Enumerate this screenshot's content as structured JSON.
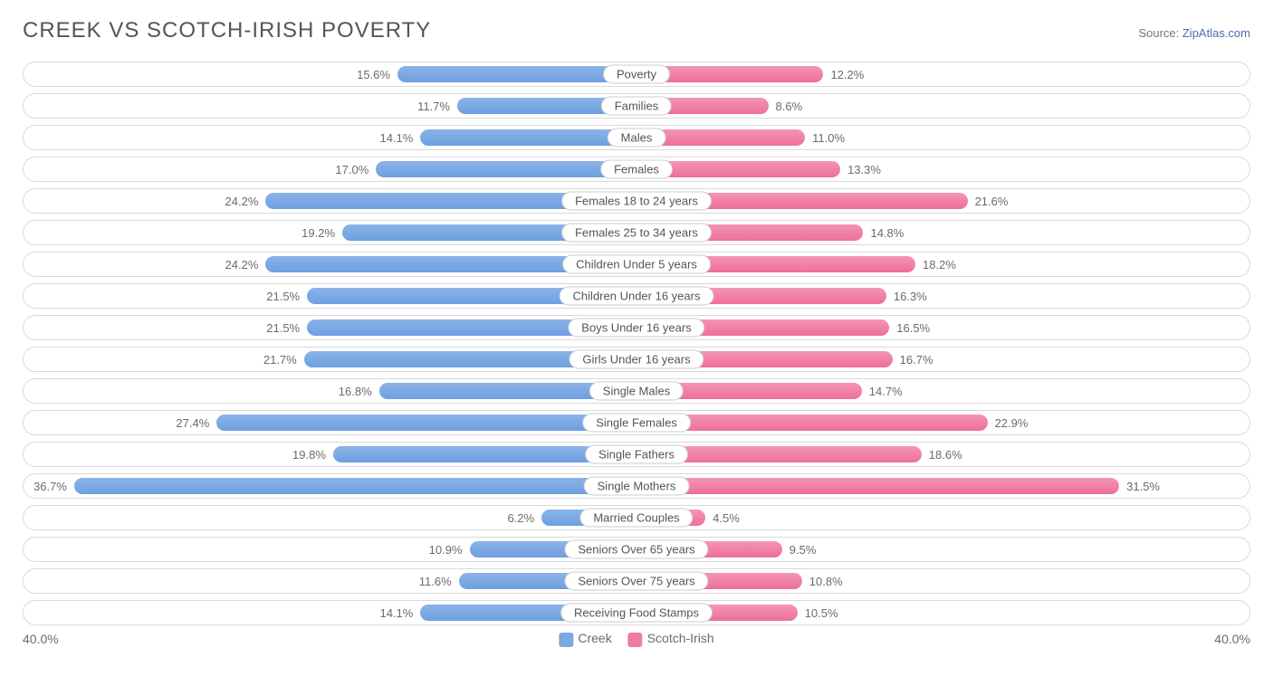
{
  "header": {
    "title": "CREEK VS SCOTCH-IRISH POVERTY",
    "source_prefix": "Source: ",
    "source_name": "ZipAtlas.com"
  },
  "chart": {
    "type": "diverging-bar",
    "max_percent": 40.0,
    "axis_label_left": "40.0%",
    "axis_label_right": "40.0%",
    "left_bar_color": "#79a8e3",
    "right_bar_color": "#f07ca3",
    "row_border_color": "#d9d9d9",
    "background_color": "#ffffff",
    "label_fontsize": 13,
    "title_fontsize": 24
  },
  "legend": {
    "items": [
      {
        "label": "Creek",
        "color": "#79a8e3"
      },
      {
        "label": "Scotch-Irish",
        "color": "#f07ca3"
      }
    ]
  },
  "rows": [
    {
      "category": "Poverty",
      "left_val": 15.6,
      "left_txt": "15.6%",
      "right_val": 12.2,
      "right_txt": "12.2%"
    },
    {
      "category": "Families",
      "left_val": 11.7,
      "left_txt": "11.7%",
      "right_val": 8.6,
      "right_txt": "8.6%"
    },
    {
      "category": "Males",
      "left_val": 14.1,
      "left_txt": "14.1%",
      "right_val": 11.0,
      "right_txt": "11.0%"
    },
    {
      "category": "Females",
      "left_val": 17.0,
      "left_txt": "17.0%",
      "right_val": 13.3,
      "right_txt": "13.3%"
    },
    {
      "category": "Females 18 to 24 years",
      "left_val": 24.2,
      "left_txt": "24.2%",
      "right_val": 21.6,
      "right_txt": "21.6%"
    },
    {
      "category": "Females 25 to 34 years",
      "left_val": 19.2,
      "left_txt": "19.2%",
      "right_val": 14.8,
      "right_txt": "14.8%"
    },
    {
      "category": "Children Under 5 years",
      "left_val": 24.2,
      "left_txt": "24.2%",
      "right_val": 18.2,
      "right_txt": "18.2%"
    },
    {
      "category": "Children Under 16 years",
      "left_val": 21.5,
      "left_txt": "21.5%",
      "right_val": 16.3,
      "right_txt": "16.3%"
    },
    {
      "category": "Boys Under 16 years",
      "left_val": 21.5,
      "left_txt": "21.5%",
      "right_val": 16.5,
      "right_txt": "16.5%"
    },
    {
      "category": "Girls Under 16 years",
      "left_val": 21.7,
      "left_txt": "21.7%",
      "right_val": 16.7,
      "right_txt": "16.7%"
    },
    {
      "category": "Single Males",
      "left_val": 16.8,
      "left_txt": "16.8%",
      "right_val": 14.7,
      "right_txt": "14.7%"
    },
    {
      "category": "Single Females",
      "left_val": 27.4,
      "left_txt": "27.4%",
      "right_val": 22.9,
      "right_txt": "22.9%"
    },
    {
      "category": "Single Fathers",
      "left_val": 19.8,
      "left_txt": "19.8%",
      "right_val": 18.6,
      "right_txt": "18.6%"
    },
    {
      "category": "Single Mothers",
      "left_val": 36.7,
      "left_txt": "36.7%",
      "right_val": 31.5,
      "right_txt": "31.5%"
    },
    {
      "category": "Married Couples",
      "left_val": 6.2,
      "left_txt": "6.2%",
      "right_val": 4.5,
      "right_txt": "4.5%"
    },
    {
      "category": "Seniors Over 65 years",
      "left_val": 10.9,
      "left_txt": "10.9%",
      "right_val": 9.5,
      "right_txt": "9.5%"
    },
    {
      "category": "Seniors Over 75 years",
      "left_val": 11.6,
      "left_txt": "11.6%",
      "right_val": 10.8,
      "right_txt": "10.8%"
    },
    {
      "category": "Receiving Food Stamps",
      "left_val": 14.1,
      "left_txt": "14.1%",
      "right_val": 10.5,
      "right_txt": "10.5%"
    }
  ]
}
